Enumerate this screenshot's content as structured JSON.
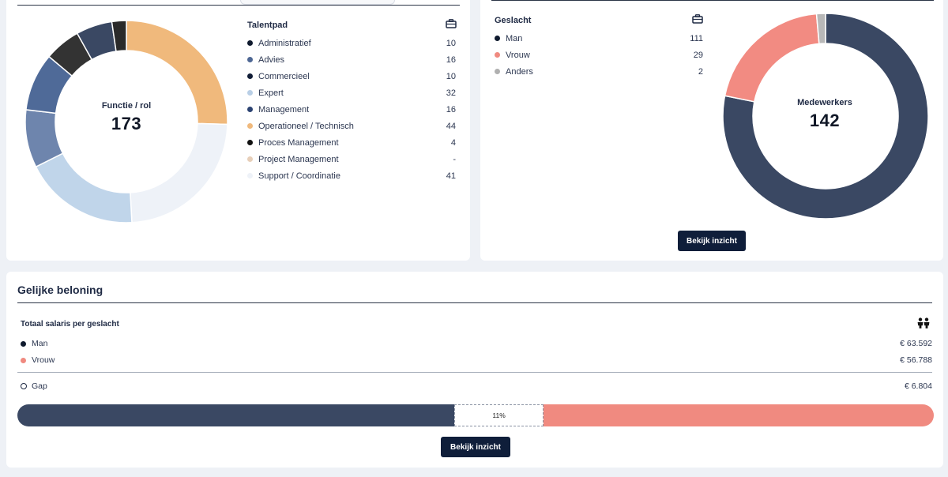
{
  "talent_card": {
    "legend_title": "Talentpad",
    "icon": "briefcase-icon",
    "center_label": "Functie / rol",
    "total": "173",
    "items": [
      {
        "name": "Administratief",
        "value": "10",
        "count": 10,
        "color": "#0f1a2e"
      },
      {
        "name": "Advies",
        "value": "16",
        "count": 16,
        "color": "#4e6794"
      },
      {
        "name": "Commercieel",
        "value": "10",
        "count": 10,
        "color": "#101c36"
      },
      {
        "name": "Expert",
        "value": "32",
        "count": 32,
        "color": "#b9cfe6"
      },
      {
        "name": "Management",
        "value": "16",
        "count": 16,
        "color": "#2c4372"
      },
      {
        "name": "Operationeel / Technisch",
        "value": "44",
        "count": 44,
        "color": "#f0b97c"
      },
      {
        "name": "Proces Management",
        "value": "4",
        "count": 4,
        "color": "#111111"
      },
      {
        "name": "Project Management",
        "value": "-",
        "count": 0,
        "color": "#e7cfb9"
      },
      {
        "name": "Support / Coordinatie",
        "value": "41",
        "count": 41,
        "color": "#eef2f8"
      }
    ],
    "donut_order": [
      "Operationeel / Technisch",
      "Support / Coordinatie",
      "Expert",
      "Management",
      "Advies",
      "Administratief",
      "Commercieel",
      "Proces Management"
    ],
    "donut_colors": {
      "Operationeel / Technisch": "#f0b97c",
      "Support / Coordinatie": "#eef2f8",
      "Expert": "#c0d5ea",
      "Management": "#6e85ad",
      "Advies": "#4f6a98",
      "Administratief": "#333333",
      "Commercieel": "#3a4863",
      "Proces Management": "#2a2a2a"
    }
  },
  "gender_card": {
    "legend_title": "Geslacht",
    "icon": "briefcase-icon",
    "center_label": "Medewerkers",
    "total": "142",
    "items": [
      {
        "name": "Man",
        "value": "111",
        "count": 111,
        "color": "#0f1a2e",
        "donut_color": "#3a4863"
      },
      {
        "name": "Vrouw",
        "value": "29",
        "count": 29,
        "color": "#f08a80",
        "donut_color": "#f28b82"
      },
      {
        "name": "Anders",
        "value": "2",
        "count": 2,
        "color": "#b0b0b0",
        "donut_color": "#b8b8b8"
      }
    ],
    "button_label": "Bekijk inzicht"
  },
  "pay_card": {
    "title": "Gelijke beloning",
    "subtitle": "Totaal salaris per geslacht",
    "icon": "people-icon",
    "rows": [
      {
        "name": "Man",
        "value": "€ 63.592",
        "color": "#0f1a2e"
      },
      {
        "name": "Vrouw",
        "value": "€ 56.788",
        "color": "#f08a80"
      }
    ],
    "gap": {
      "name": "Gap",
      "value": "€ 6.804"
    },
    "bar": {
      "man_fraction": 0.477,
      "gap_fraction": 0.097,
      "gap_label": "11%"
    },
    "button_label": "Bekijk inzicht"
  }
}
